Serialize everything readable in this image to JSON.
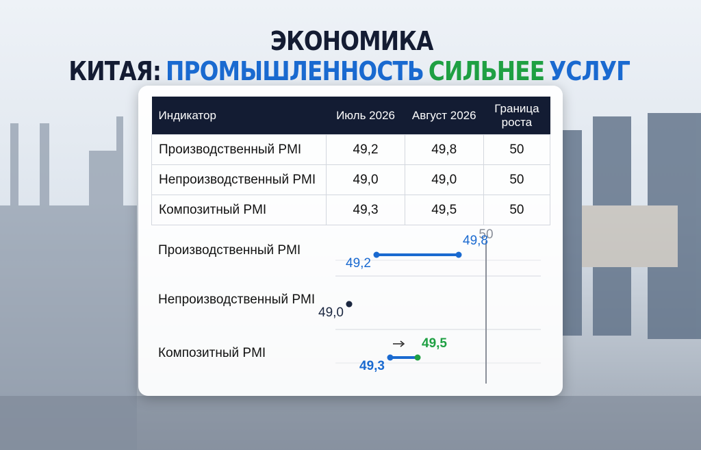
{
  "header": {
    "title_parts": [
      "ЭКОНОМИКА КИТАЯ:",
      "ПРОМЫШЛЕННОСТЬ",
      "СИЛЬНЕЕ",
      "УСЛУГ"
    ]
  },
  "table": {
    "columns": [
      "Индикатор",
      "Июль 2026",
      "Август 2026",
      "Граница роста"
    ],
    "rows": [
      [
        "Производственный PMI",
        "49,2",
        "49,8",
        "50"
      ],
      [
        "Непроизводственный PMI",
        "49,0",
        "49,0",
        "50"
      ],
      [
        "Композитный PMI",
        "49,3",
        "49,5",
        "50"
      ]
    ]
  },
  "chart_data": {
    "type": "dumbbell",
    "categories": [
      "Производственный PMI",
      "Непроизводственный PMI",
      "Композитный PMI"
    ],
    "series": [
      {
        "values": [
          49.2,
          49.0,
          49.3
        ],
        "value_labels": [
          "49,2",
          "49,0",
          "49,3"
        ],
        "colors": [
          "#1a6ad0",
          "#1b2740",
          "#1a6ad0"
        ]
      },
      {
        "values": [
          49.8,
          49.0,
          49.5
        ],
        "value_labels": [
          "49,8",
          null,
          "49,5"
        ],
        "colors": [
          "#1a6ad0",
          "#1b2740",
          "#1fa043"
        ]
      }
    ],
    "line_colors": [
      "#1a6ad0",
      "#1b2740",
      "#1a6ad0"
    ],
    "xlim": [
      48.9,
      50.4
    ],
    "reference_line": 50,
    "reference_color": "#8a8f99"
  }
}
